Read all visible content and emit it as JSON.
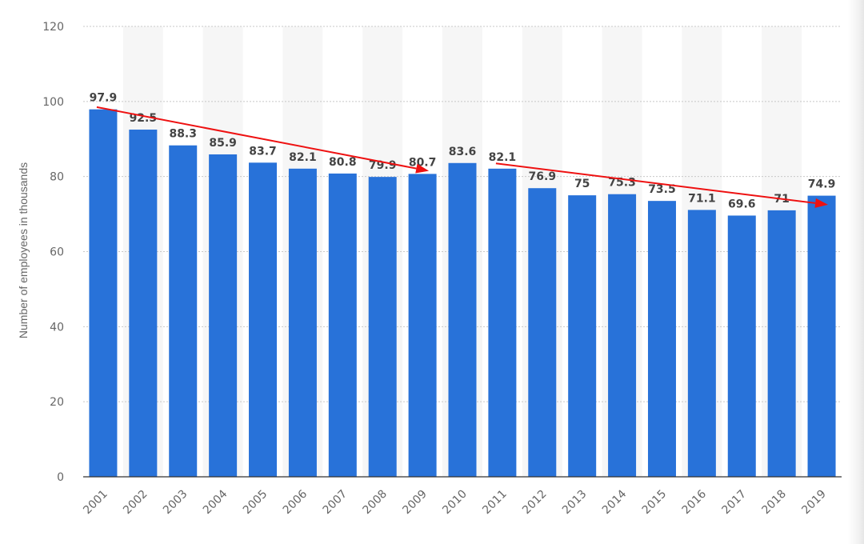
{
  "chart_data": {
    "type": "bar",
    "categories": [
      "2001",
      "2002",
      "2003",
      "2004",
      "2005",
      "2006",
      "2007",
      "2008",
      "2009",
      "2010",
      "2011",
      "2012",
      "2013",
      "2014",
      "2015",
      "2016",
      "2017",
      "2018",
      "2019"
    ],
    "values": [
      97.9,
      92.5,
      88.3,
      85.9,
      83.7,
      82.1,
      80.8,
      79.9,
      80.7,
      83.6,
      82.1,
      76.9,
      75,
      75.3,
      73.5,
      71.1,
      69.6,
      71,
      74.9
    ],
    "value_labels": [
      "97.9",
      "92.5",
      "88.3",
      "85.9",
      "83.7",
      "82.1",
      "80.8",
      "79.9",
      "80.7",
      "83.6",
      "82.1",
      "76.9",
      "75",
      "75.3",
      "73.5",
      "71.1",
      "69.6",
      "71",
      "74.9"
    ],
    "ylabel": "Number of employees in thousands",
    "ylim": [
      0,
      120
    ],
    "yticks": [
      "0",
      "20",
      "40",
      "60",
      "80",
      "100",
      "120"
    ],
    "grid": true,
    "bar_color": "#2872d9",
    "alt_band_color": "#f6f6f6",
    "annotations": [
      {
        "type": "arrow",
        "color": "#ee1111",
        "from": {
          "x": "2001",
          "y": 98.5
        },
        "to": {
          "x": "2009",
          "y": 81.5
        }
      },
      {
        "type": "arrow",
        "color": "#ee1111",
        "from": {
          "x": "2011",
          "y": 83.5
        },
        "to": {
          "x": "2019",
          "y": 72.5
        }
      }
    ]
  }
}
